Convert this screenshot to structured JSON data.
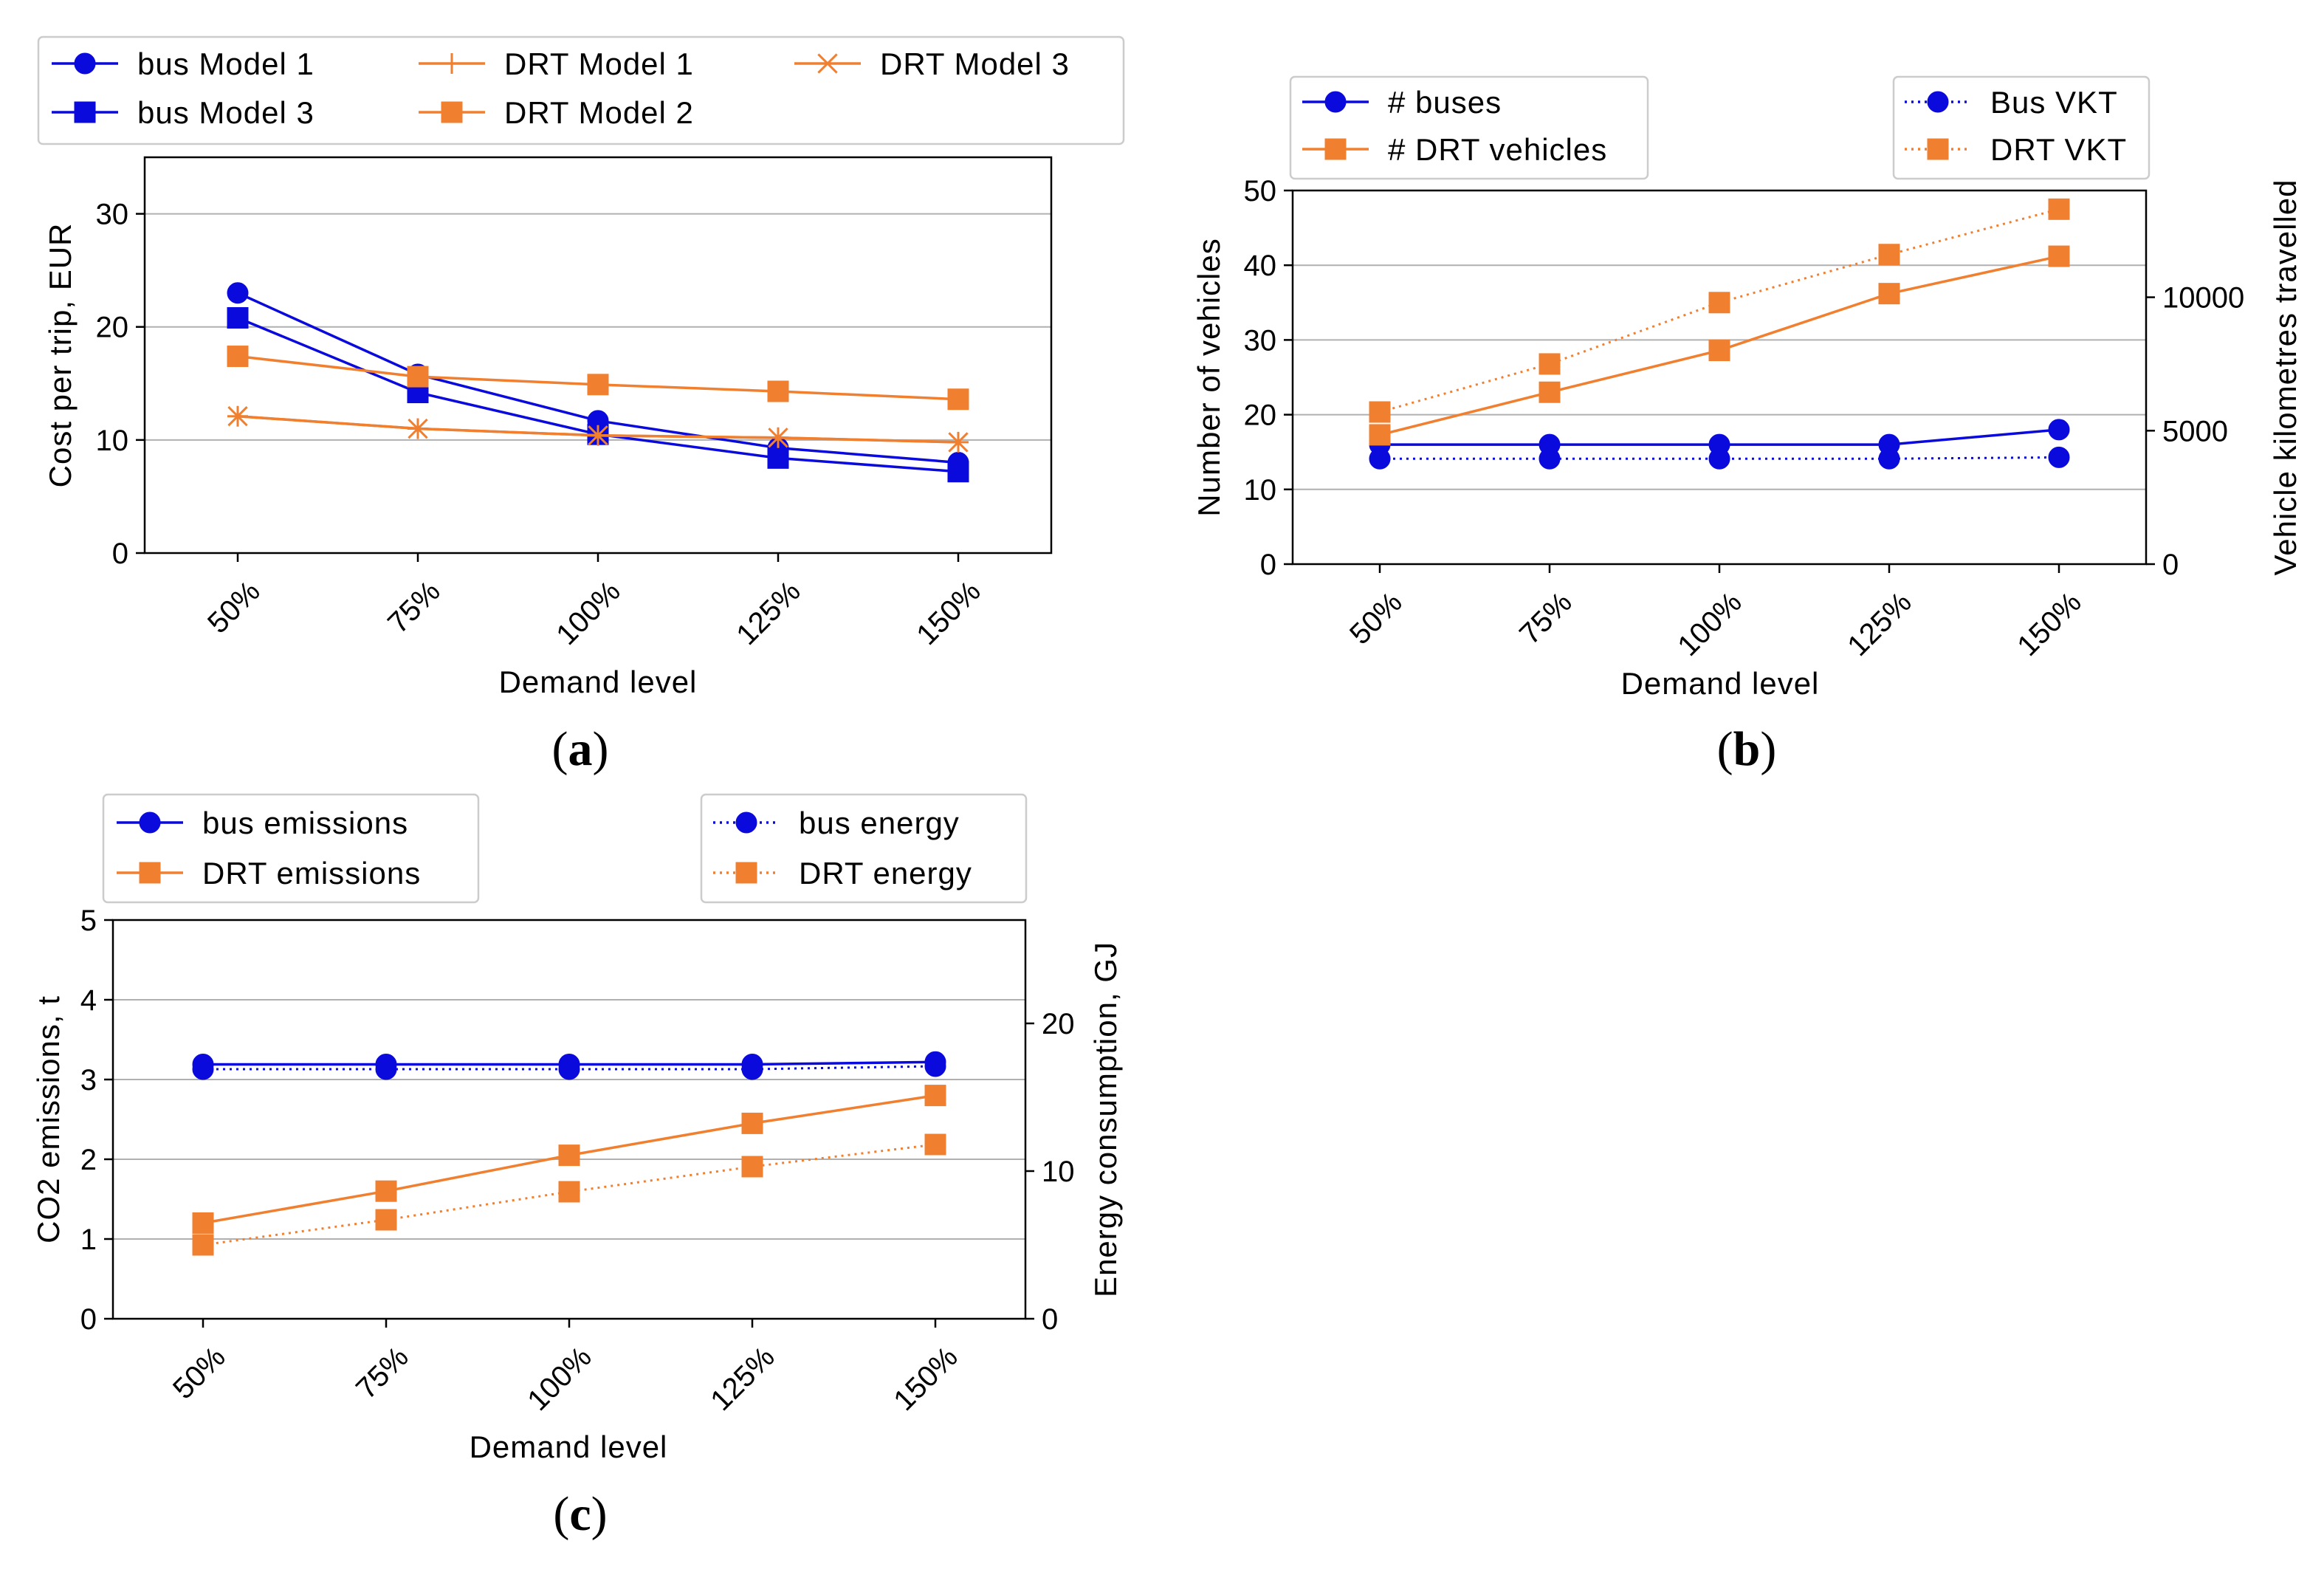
{
  "colors": {
    "bus": "#0a0adc",
    "drt": "#f08030"
  },
  "chart_data": [
    {
      "id": "a",
      "caption": "(a)",
      "caption_letter": "a",
      "type": "line",
      "xlabel": "Demand level",
      "ylabel": "Cost per trip, EUR",
      "categories": [
        "50%",
        "75%",
        "100%",
        "125%",
        "150%"
      ],
      "ylim": [
        0,
        35
      ],
      "yticks": [
        0,
        10,
        20,
        30
      ],
      "grid": true,
      "legend": "top",
      "series": [
        {
          "name": "bus Model 1",
          "color": "bus",
          "marker": "circle",
          "dash": "solid",
          "values": [
            23.0,
            15.8,
            11.7,
            9.3,
            8.0
          ]
        },
        {
          "name": "bus Model 3",
          "color": "bus",
          "marker": "square",
          "dash": "solid",
          "values": [
            20.8,
            14.2,
            10.5,
            8.4,
            7.2
          ]
        },
        {
          "name": "DRT Model 1",
          "color": "drt",
          "marker": "plus",
          "dash": "solid",
          "values": [
            12.1,
            11.0,
            10.4,
            10.2,
            9.8
          ]
        },
        {
          "name": "DRT Model 2",
          "color": "drt",
          "marker": "square",
          "dash": "solid",
          "values": [
            17.4,
            15.6,
            14.9,
            14.3,
            13.6
          ]
        },
        {
          "name": "DRT Model 3",
          "color": "drt",
          "marker": "x",
          "dash": "solid",
          "values": [
            12.1,
            11.0,
            10.4,
            10.2,
            9.8
          ]
        }
      ]
    },
    {
      "id": "b",
      "caption": "(b)",
      "caption_letter": "b",
      "type": "line",
      "xlabel": "Demand level",
      "ylabel": "Number of vehicles",
      "y2label": "Vehicle kilometres travelled",
      "categories": [
        "50%",
        "75%",
        "100%",
        "125%",
        "150%"
      ],
      "ylim": [
        0,
        50
      ],
      "yticks": [
        0,
        10,
        20,
        30,
        40,
        50
      ],
      "y2lim": [
        0,
        14000
      ],
      "y2ticks": [
        0,
        5000,
        10000
      ],
      "grid": true,
      "legend": "top-left and top-right",
      "series": [
        {
          "name": "# buses",
          "color": "bus",
          "marker": "circle",
          "dash": "solid",
          "axis": "left",
          "values": [
            16,
            16,
            16,
            16,
            18
          ]
        },
        {
          "name": "# DRT vehicles",
          "color": "drt",
          "marker": "square",
          "dash": "solid",
          "axis": "left",
          "values": [
            17.3,
            23,
            28.6,
            36.2,
            41.2
          ]
        },
        {
          "name": "Bus VKT",
          "color": "bus",
          "marker": "circle",
          "dash": "dotted",
          "axis": "right",
          "values": [
            3950,
            3950,
            3950,
            3950,
            4000
          ]
        },
        {
          "name": "DRT VKT",
          "color": "drt",
          "marker": "square",
          "dash": "dotted",
          "axis": "right",
          "values": [
            5700,
            7500,
            9800,
            11600,
            13300
          ]
        }
      ]
    },
    {
      "id": "c",
      "caption": "(c)",
      "caption_letter": "c",
      "type": "line",
      "xlabel": "Demand level",
      "ylabel": "CO2 emissions, t",
      "y2label": "Energy consumption, GJ",
      "categories": [
        "50%",
        "75%",
        "100%",
        "125%",
        "150%"
      ],
      "ylim": [
        0,
        5
      ],
      "yticks": [
        0,
        1,
        2,
        3,
        4,
        5
      ],
      "y2lim": [
        0,
        27
      ],
      "y2ticks": [
        0,
        10,
        20
      ],
      "grid": true,
      "legend": "top-left and top-right",
      "series": [
        {
          "name": "bus emissions",
          "color": "bus",
          "marker": "circle",
          "dash": "solid",
          "axis": "left",
          "values": [
            3.19,
            3.19,
            3.19,
            3.19,
            3.22
          ]
        },
        {
          "name": "DRT emissions",
          "color": "drt",
          "marker": "square",
          "dash": "solid",
          "axis": "left",
          "values": [
            1.2,
            1.6,
            2.05,
            2.45,
            2.8
          ]
        },
        {
          "name": "bus energy",
          "color": "bus",
          "marker": "circle",
          "dash": "dotted",
          "axis": "right",
          "values": [
            16.9,
            16.9,
            16.9,
            16.9,
            17.1
          ]
        },
        {
          "name": "DRT energy",
          "color": "drt",
          "marker": "square",
          "dash": "dotted",
          "axis": "right",
          "values": [
            5.0,
            6.7,
            8.6,
            10.3,
            11.8
          ]
        }
      ]
    }
  ]
}
